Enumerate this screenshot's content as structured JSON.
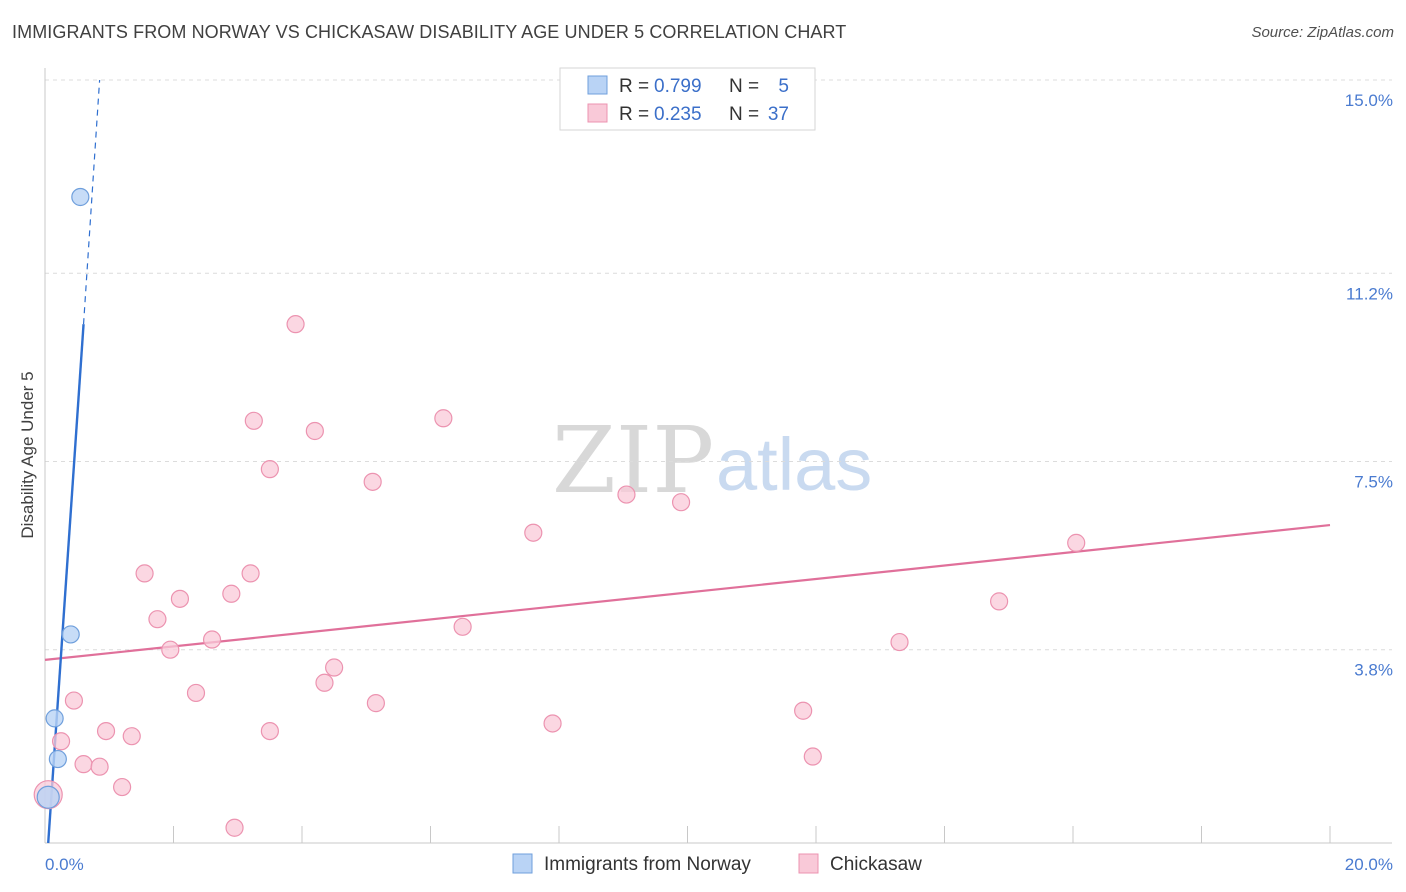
{
  "header": {
    "title": "IMMIGRANTS FROM NORWAY VS CHICKASAW DISABILITY AGE UNDER 5 CORRELATION CHART",
    "source": "Source: ZipAtlas.com"
  },
  "watermark": {
    "zip": "ZIP",
    "atlas": "atlas"
  },
  "colors": {
    "norway_fill": "#b9d3f5",
    "norway_stroke": "#6f9fdc",
    "norway_line": "#2f6fd0",
    "chickasaw_fill": "#f9c9d8",
    "chickasaw_stroke": "#ec93b0",
    "chickasaw_line": "#e0709a",
    "grid": "#dcdcdc",
    "tick_label": "#4a7bd0"
  },
  "legend": {
    "rows": [
      {
        "r_label": "R =",
        "r_value": "0.799",
        "n_label": "N =",
        "n_value": "5"
      },
      {
        "r_label": "R =",
        "r_value": "0.235",
        "n_label": "N =",
        "n_value": "37"
      }
    ]
  },
  "bottom_legend": {
    "items": [
      {
        "label": "Immigrants from Norway"
      },
      {
        "label": "Chickasaw"
      }
    ]
  },
  "chart_data": {
    "type": "scatter",
    "title": "IMMIGRANTS FROM NORWAY VS CHICKASAW DISABILITY AGE UNDER 5 CORRELATION CHART",
    "xlabel": "",
    "ylabel": "Disability Age Under 5",
    "xlim": [
      0,
      20
    ],
    "ylim": [
      0,
      15
    ],
    "x_tick_labels": {
      "min": "0.0%",
      "max": "20.0%"
    },
    "y_ticks": [
      {
        "value": 3.8,
        "label": "3.8%"
      },
      {
        "value": 7.5,
        "label": "7.5%"
      },
      {
        "value": 11.2,
        "label": "11.2%"
      },
      {
        "value": 15.0,
        "label": "15.0%"
      }
    ],
    "series": [
      {
        "name": "Immigrants from Norway",
        "R": 0.799,
        "N": 5,
        "points": [
          {
            "x": 0.05,
            "y": 0.9
          },
          {
            "x": 0.2,
            "y": 1.65
          },
          {
            "x": 0.15,
            "y": 2.45
          },
          {
            "x": 0.4,
            "y": 4.1
          },
          {
            "x": 0.55,
            "y": 12.7
          }
        ],
        "trend": {
          "x0": 0.05,
          "y0": 0.0,
          "x1": 0.6,
          "y1": 10.2,
          "dash_x1": 0.85,
          "dash_y1": 15.0
        }
      },
      {
        "name": "Chickasaw",
        "R": 0.235,
        "N": 37,
        "points": [
          {
            "x": 0.05,
            "y": 0.95
          },
          {
            "x": 0.25,
            "y": 2.0
          },
          {
            "x": 0.45,
            "y": 2.8
          },
          {
            "x": 0.6,
            "y": 1.55
          },
          {
            "x": 0.85,
            "y": 1.5
          },
          {
            "x": 0.95,
            "y": 2.2
          },
          {
            "x": 1.2,
            "y": 1.1
          },
          {
            "x": 1.35,
            "y": 2.1
          },
          {
            "x": 1.55,
            "y": 5.3
          },
          {
            "x": 1.75,
            "y": 4.4
          },
          {
            "x": 1.95,
            "y": 3.8
          },
          {
            "x": 2.1,
            "y": 4.8
          },
          {
            "x": 2.35,
            "y": 2.95
          },
          {
            "x": 2.6,
            "y": 4.0
          },
          {
            "x": 2.9,
            "y": 4.9
          },
          {
            "x": 2.95,
            "y": 0.3
          },
          {
            "x": 3.2,
            "y": 5.3
          },
          {
            "x": 3.25,
            "y": 8.3
          },
          {
            "x": 3.5,
            "y": 7.35
          },
          {
            "x": 3.5,
            "y": 2.2
          },
          {
            "x": 3.9,
            "y": 10.2
          },
          {
            "x": 4.2,
            "y": 8.1
          },
          {
            "x": 4.35,
            "y": 3.15
          },
          {
            "x": 4.5,
            "y": 3.45
          },
          {
            "x": 5.1,
            "y": 7.1
          },
          {
            "x": 5.15,
            "y": 2.75
          },
          {
            "x": 6.2,
            "y": 8.35
          },
          {
            "x": 6.5,
            "y": 4.25
          },
          {
            "x": 7.6,
            "y": 6.1
          },
          {
            "x": 7.9,
            "y": 2.35
          },
          {
            "x": 9.05,
            "y": 6.85
          },
          {
            "x": 9.9,
            "y": 6.7
          },
          {
            "x": 11.8,
            "y": 2.6
          },
          {
            "x": 11.95,
            "y": 1.7
          },
          {
            "x": 13.3,
            "y": 3.95
          },
          {
            "x": 14.85,
            "y": 4.75
          },
          {
            "x": 16.05,
            "y": 5.9
          }
        ],
        "trend": {
          "x0": 0.0,
          "y0": 3.6,
          "x1": 20.0,
          "y1": 6.25
        }
      }
    ]
  }
}
